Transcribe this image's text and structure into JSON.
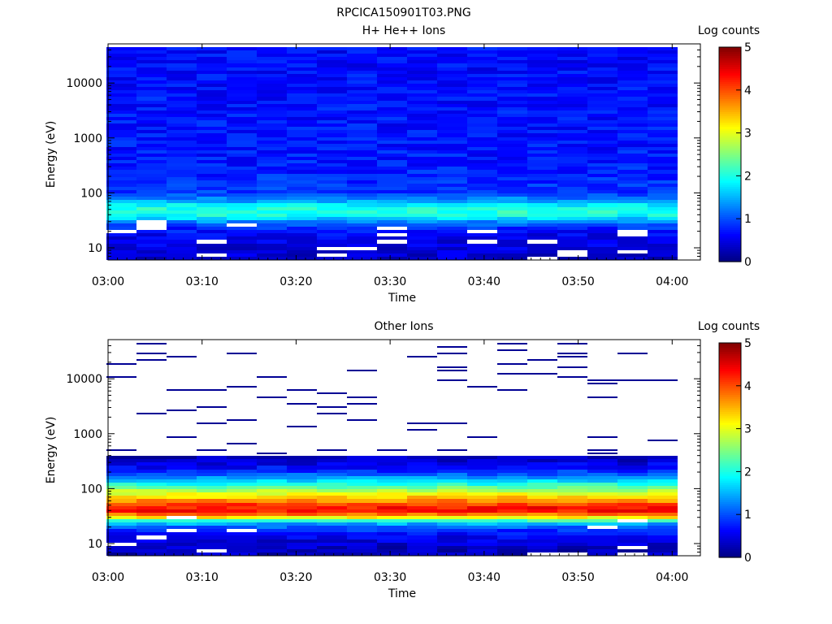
{
  "figure": {
    "title": "RPCICA150901T03.PNG"
  },
  "chart_data": [
    {
      "type": "heatmap",
      "title": "H+ He++ Ions",
      "xlabel": "Time",
      "ylabel": "Energy (eV)",
      "xticks": [
        "03:00",
        "03:10",
        "03:20",
        "03:30",
        "03:40",
        "03:50",
        "04:00"
      ],
      "xlim_minutes": [
        0,
        63
      ],
      "y_scale": "log",
      "yticks": [
        10,
        100,
        1000,
        10000
      ],
      "ylim": [
        6,
        45000
      ],
      "colorbar": {
        "label": "Log counts",
        "ticks": [
          0,
          1,
          2,
          3,
          4,
          5
        ],
        "range": [
          0,
          5
        ],
        "colormap": "jet"
      },
      "time_bins_minutes": [
        1.4,
        4.6,
        7.8,
        11.0,
        14.2,
        17.4,
        20.6,
        23.8,
        27.0,
        30.2,
        33.4,
        36.6,
        39.8,
        43.0,
        46.2,
        49.4,
        52.6,
        55.8,
        59.0
      ],
      "energy_profile_log_counts": [
        {
          "energy_ev": 8,
          "value": 0.4
        },
        {
          "energy_ev": 12,
          "value": 0.5
        },
        {
          "energy_ev": 18,
          "value": 0.6
        },
        {
          "energy_ev": 25,
          "value": 0.9
        },
        {
          "energy_ev": 32,
          "value": 1.5
        },
        {
          "energy_ev": 42,
          "value": 2.1
        },
        {
          "energy_ev": 55,
          "value": 2.0
        },
        {
          "energy_ev": 70,
          "value": 1.4
        },
        {
          "energy_ev": 100,
          "value": 0.9
        },
        {
          "energy_ev": 300,
          "value": 0.75
        },
        {
          "energy_ev": 1000,
          "value": 0.7
        },
        {
          "energy_ev": 5000,
          "value": 0.7
        },
        {
          "energy_ev": 20000,
          "value": 0.65
        }
      ]
    },
    {
      "type": "heatmap",
      "title": "Other Ions",
      "xlabel": "Time",
      "ylabel": "Energy (eV)",
      "xticks": [
        "03:00",
        "03:10",
        "03:20",
        "03:30",
        "03:40",
        "03:50",
        "04:00"
      ],
      "xlim_minutes": [
        0,
        63
      ],
      "y_scale": "log",
      "yticks": [
        10,
        100,
        1000,
        10000
      ],
      "ylim": [
        6,
        45000
      ],
      "colorbar": {
        "label": "Log counts",
        "ticks": [
          0,
          1,
          2,
          3,
          4,
          5
        ],
        "range": [
          0,
          5
        ],
        "colormap": "jet"
      },
      "time_bins_minutes": [
        1.4,
        4.6,
        7.8,
        11.0,
        14.2,
        17.4,
        20.6,
        23.8,
        27.0,
        30.2,
        33.4,
        36.6,
        39.8,
        43.0,
        46.2,
        49.4,
        52.6,
        55.8,
        59.0
      ],
      "energy_profile_log_counts": [
        {
          "energy_ev": 8,
          "value": 0.3
        },
        {
          "energy_ev": 12,
          "value": 0.5
        },
        {
          "energy_ev": 18,
          "value": 0.9
        },
        {
          "energy_ev": 24,
          "value": 1.6
        },
        {
          "energy_ev": 30,
          "value": 3.2
        },
        {
          "energy_ev": 38,
          "value": 4.3
        },
        {
          "energy_ev": 48,
          "value": 4.3
        },
        {
          "energy_ev": 62,
          "value": 3.6
        },
        {
          "energy_ev": 85,
          "value": 2.9
        },
        {
          "energy_ev": 120,
          "value": 2.0
        },
        {
          "energy_ev": 170,
          "value": 1.2
        },
        {
          "energy_ev": 250,
          "value": 0.6
        },
        {
          "energy_ev": 400,
          "value": 0.2
        }
      ],
      "sparse_counts_above_ev": 400,
      "sparse_value": 0.1
    }
  ]
}
